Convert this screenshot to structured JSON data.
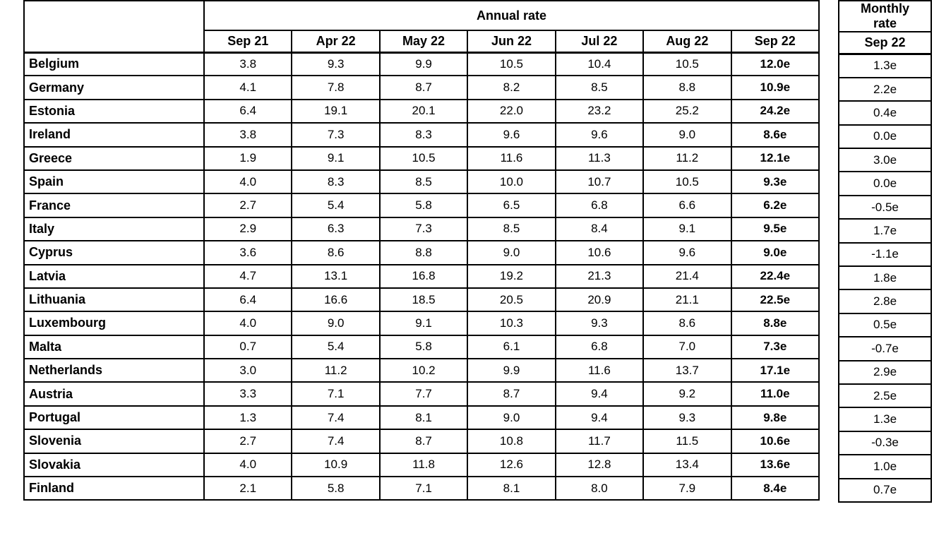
{
  "colors": {
    "border": "#000000",
    "background": "#ffffff",
    "text": "#000000"
  },
  "chart_data": {
    "type": "table",
    "annual_group_label": "Annual rate",
    "monthly_group_label": "Monthly\nrate",
    "annual_columns": [
      "Sep 21",
      "Apr 22",
      "May 22",
      "Jun 22",
      "Jul 22",
      "Aug 22",
      "Sep 22"
    ],
    "monthly_column": "Sep 22",
    "rows": [
      {
        "country": "Belgium",
        "annual": [
          "3.8",
          "9.3",
          "9.9",
          "10.5",
          "10.4",
          "10.5",
          "12.0e"
        ],
        "monthly": "1.3e"
      },
      {
        "country": "Germany",
        "annual": [
          "4.1",
          "7.8",
          "8.7",
          "8.2",
          "8.5",
          "8.8",
          "10.9e"
        ],
        "monthly": "2.2e"
      },
      {
        "country": "Estonia",
        "annual": [
          "6.4",
          "19.1",
          "20.1",
          "22.0",
          "23.2",
          "25.2",
          "24.2e"
        ],
        "monthly": "0.4e"
      },
      {
        "country": "Ireland",
        "annual": [
          "3.8",
          "7.3",
          "8.3",
          "9.6",
          "9.6",
          "9.0",
          "8.6e"
        ],
        "monthly": "0.0e"
      },
      {
        "country": "Greece",
        "annual": [
          "1.9",
          "9.1",
          "10.5",
          "11.6",
          "11.3",
          "11.2",
          "12.1e"
        ],
        "monthly": "3.0e"
      },
      {
        "country": "Spain",
        "annual": [
          "4.0",
          "8.3",
          "8.5",
          "10.0",
          "10.7",
          "10.5",
          "9.3e"
        ],
        "monthly": "0.0e"
      },
      {
        "country": "France",
        "annual": [
          "2.7",
          "5.4",
          "5.8",
          "6.5",
          "6.8",
          "6.6",
          "6.2e"
        ],
        "monthly": "-0.5e"
      },
      {
        "country": "Italy",
        "annual": [
          "2.9",
          "6.3",
          "7.3",
          "8.5",
          "8.4",
          "9.1",
          "9.5e"
        ],
        "monthly": "1.7e"
      },
      {
        "country": "Cyprus",
        "annual": [
          "3.6",
          "8.6",
          "8.8",
          "9.0",
          "10.6",
          "9.6",
          "9.0e"
        ],
        "monthly": "-1.1e"
      },
      {
        "country": "Latvia",
        "annual": [
          "4.7",
          "13.1",
          "16.8",
          "19.2",
          "21.3",
          "21.4",
          "22.4e"
        ],
        "monthly": "1.8e"
      },
      {
        "country": "Lithuania",
        "annual": [
          "6.4",
          "16.6",
          "18.5",
          "20.5",
          "20.9",
          "21.1",
          "22.5e"
        ],
        "monthly": "2.8e"
      },
      {
        "country": "Luxembourg",
        "annual": [
          "4.0",
          "9.0",
          "9.1",
          "10.3",
          "9.3",
          "8.6",
          "8.8e"
        ],
        "monthly": "0.5e"
      },
      {
        "country": "Malta",
        "annual": [
          "0.7",
          "5.4",
          "5.8",
          "6.1",
          "6.8",
          "7.0",
          "7.3e"
        ],
        "monthly": "-0.7e"
      },
      {
        "country": "Netherlands",
        "annual": [
          "3.0",
          "11.2",
          "10.2",
          "9.9",
          "11.6",
          "13.7",
          "17.1e"
        ],
        "monthly": "2.9e"
      },
      {
        "country": "Austria",
        "annual": [
          "3.3",
          "7.1",
          "7.7",
          "8.7",
          "9.4",
          "9.2",
          "11.0e"
        ],
        "monthly": "2.5e"
      },
      {
        "country": "Portugal",
        "annual": [
          "1.3",
          "7.4",
          "8.1",
          "9.0",
          "9.4",
          "9.3",
          "9.8e"
        ],
        "monthly": "1.3e"
      },
      {
        "country": "Slovenia",
        "annual": [
          "2.7",
          "7.4",
          "8.7",
          "10.8",
          "11.7",
          "11.5",
          "10.6e"
        ],
        "monthly": "-0.3e"
      },
      {
        "country": "Slovakia",
        "annual": [
          "4.0",
          "10.9",
          "11.8",
          "12.6",
          "12.8",
          "13.4",
          "13.6e"
        ],
        "monthly": "1.0e"
      },
      {
        "country": "Finland",
        "annual": [
          "2.1",
          "5.8",
          "7.1",
          "8.1",
          "8.0",
          "7.9",
          "8.4e"
        ],
        "monthly": "0.7e"
      }
    ]
  }
}
